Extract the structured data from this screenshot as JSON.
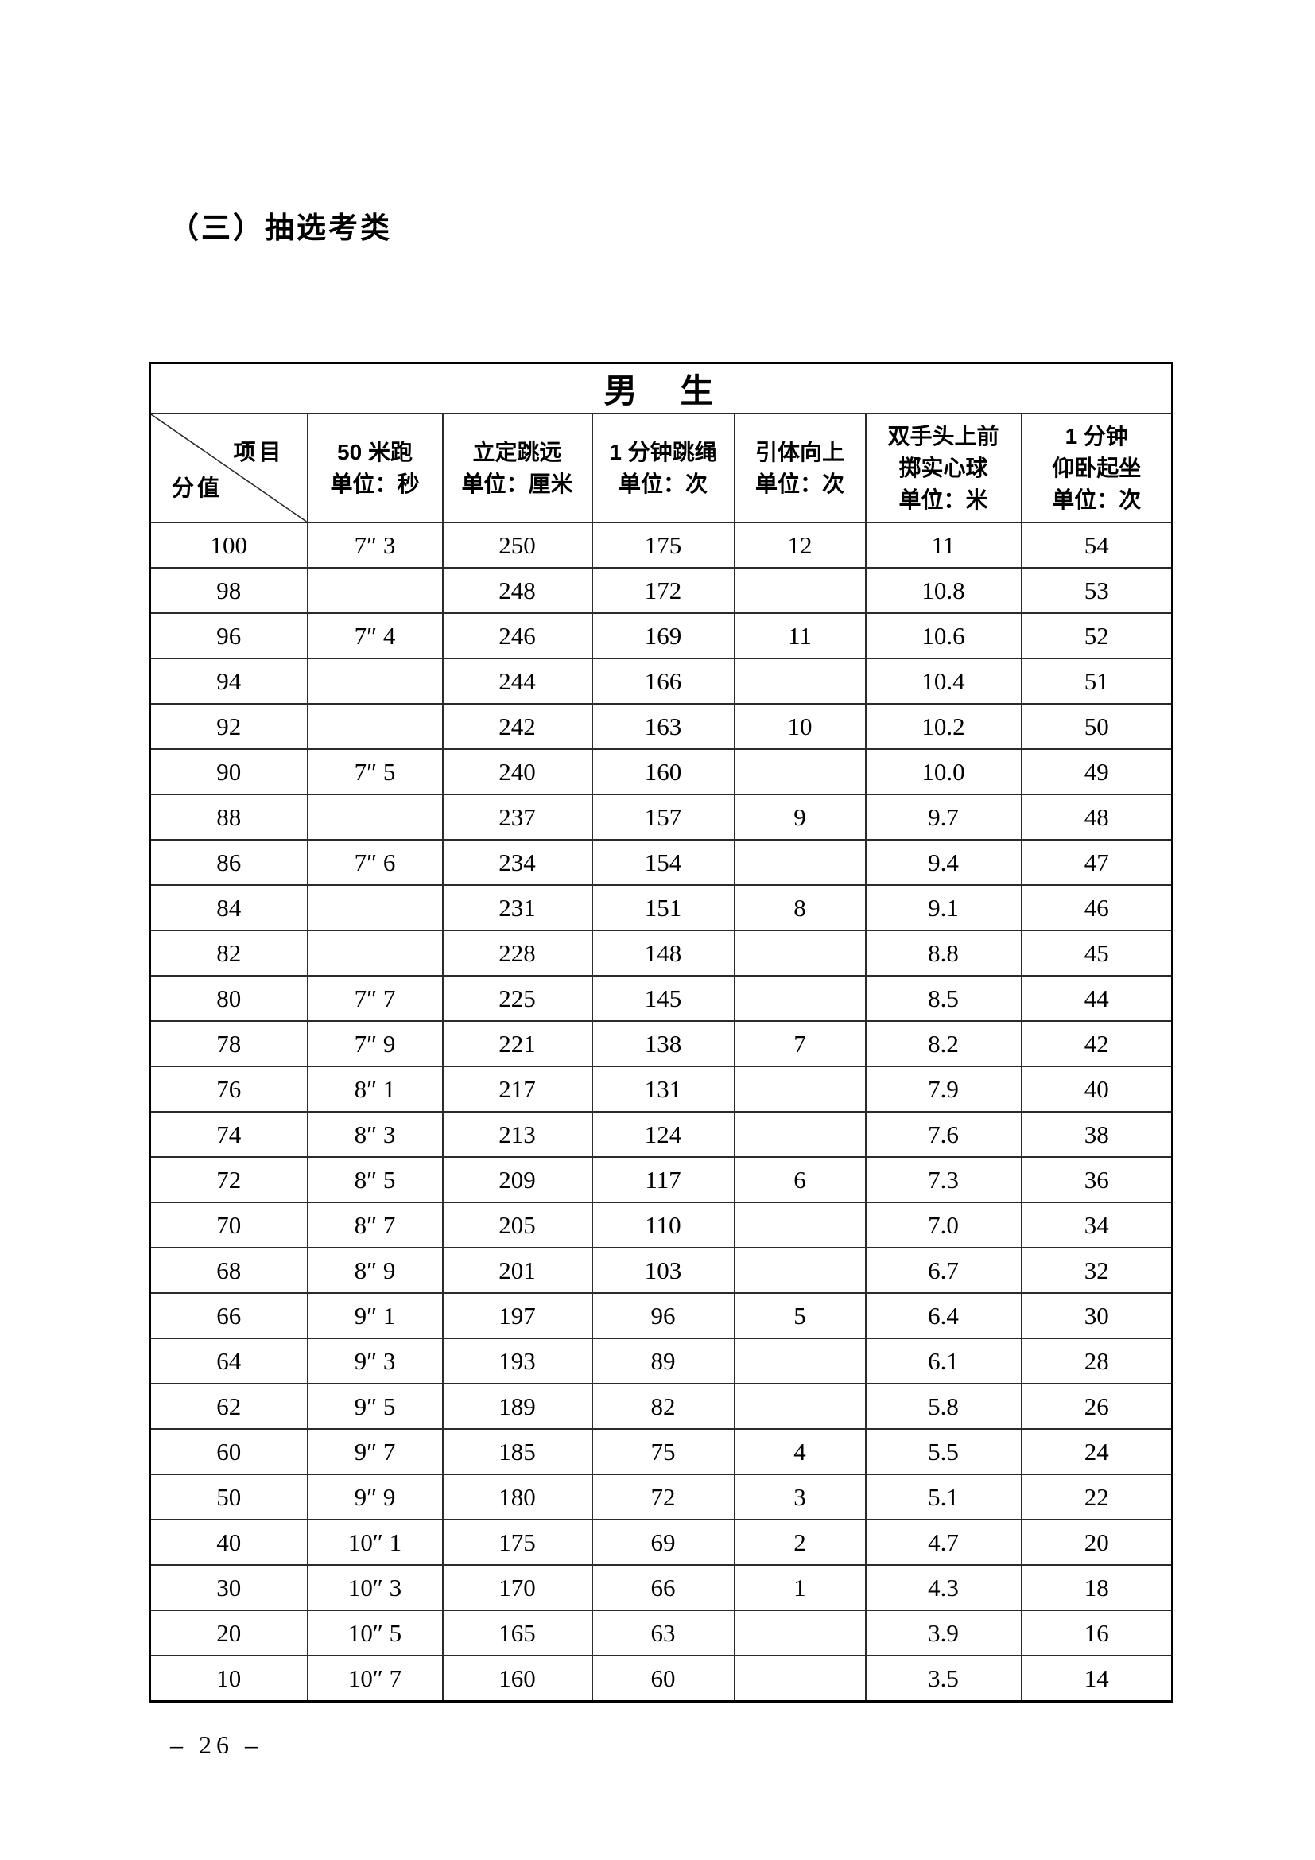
{
  "page": {
    "section_title": "（三）抽选考类",
    "page_number": "– 26 –"
  },
  "table": {
    "gender_header": "男　生",
    "corner": {
      "top_label": "项目",
      "bottom_label": "分值"
    },
    "columns": [
      {
        "lines": [
          "50 米跑",
          "单位：秒"
        ]
      },
      {
        "lines": [
          "立定跳远",
          "单位：厘米"
        ]
      },
      {
        "lines": [
          "1 分钟跳绳",
          "单位：次"
        ]
      },
      {
        "lines": [
          "引体向上",
          "单位：次"
        ]
      },
      {
        "lines": [
          "双手头上前",
          "掷实心球",
          "单位：米"
        ]
      },
      {
        "lines": [
          "1 分钟",
          "仰卧起坐",
          "单位：次"
        ]
      }
    ],
    "rows": [
      {
        "score": "100",
        "values": [
          "7″ 3",
          "250",
          "175",
          "12",
          "11",
          "54"
        ]
      },
      {
        "score": "98",
        "values": [
          "",
          "248",
          "172",
          "",
          "10.8",
          "53"
        ]
      },
      {
        "score": "96",
        "values": [
          "7″ 4",
          "246",
          "169",
          "11",
          "10.6",
          "52"
        ]
      },
      {
        "score": "94",
        "values": [
          "",
          "244",
          "166",
          "",
          "10.4",
          "51"
        ]
      },
      {
        "score": "92",
        "values": [
          "",
          "242",
          "163",
          "10",
          "10.2",
          "50"
        ]
      },
      {
        "score": "90",
        "values": [
          "7″ 5",
          "240",
          "160",
          "",
          "10.0",
          "49"
        ]
      },
      {
        "score": "88",
        "values": [
          "",
          "237",
          "157",
          "9",
          "9.7",
          "48"
        ]
      },
      {
        "score": "86",
        "values": [
          "7″ 6",
          "234",
          "154",
          "",
          "9.4",
          "47"
        ]
      },
      {
        "score": "84",
        "values": [
          "",
          "231",
          "151",
          "8",
          "9.1",
          "46"
        ]
      },
      {
        "score": "82",
        "values": [
          "",
          "228",
          "148",
          "",
          "8.8",
          "45"
        ]
      },
      {
        "score": "80",
        "values": [
          "7″ 7",
          "225",
          "145",
          "",
          "8.5",
          "44"
        ]
      },
      {
        "score": "78",
        "values": [
          "7″ 9",
          "221",
          "138",
          "7",
          "8.2",
          "42"
        ]
      },
      {
        "score": "76",
        "values": [
          "8″ 1",
          "217",
          "131",
          "",
          "7.9",
          "40"
        ]
      },
      {
        "score": "74",
        "values": [
          "8″ 3",
          "213",
          "124",
          "",
          "7.6",
          "38"
        ]
      },
      {
        "score": "72",
        "values": [
          "8″ 5",
          "209",
          "117",
          "6",
          "7.3",
          "36"
        ]
      },
      {
        "score": "70",
        "values": [
          "8″ 7",
          "205",
          "110",
          "",
          "7.0",
          "34"
        ]
      },
      {
        "score": "68",
        "values": [
          "8″ 9",
          "201",
          "103",
          "",
          "6.7",
          "32"
        ]
      },
      {
        "score": "66",
        "values": [
          "9″ 1",
          "197",
          "96",
          "5",
          "6.4",
          "30"
        ]
      },
      {
        "score": "64",
        "values": [
          "9″ 3",
          "193",
          "89",
          "",
          "6.1",
          "28"
        ]
      },
      {
        "score": "62",
        "values": [
          "9″ 5",
          "189",
          "82",
          "",
          "5.8",
          "26"
        ]
      },
      {
        "score": "60",
        "values": [
          "9″ 7",
          "185",
          "75",
          "4",
          "5.5",
          "24"
        ]
      },
      {
        "score": "50",
        "values": [
          "9″ 9",
          "180",
          "72",
          "3",
          "5.1",
          "22"
        ]
      },
      {
        "score": "40",
        "values": [
          "10″ 1",
          "175",
          "69",
          "2",
          "4.7",
          "20"
        ]
      },
      {
        "score": "30",
        "values": [
          "10″ 3",
          "170",
          "66",
          "1",
          "4.3",
          "18"
        ]
      },
      {
        "score": "20",
        "values": [
          "10″ 5",
          "165",
          "63",
          "",
          "3.9",
          "16"
        ]
      },
      {
        "score": "10",
        "values": [
          "10″ 7",
          "160",
          "60",
          "",
          "3.5",
          "14"
        ]
      }
    ]
  }
}
